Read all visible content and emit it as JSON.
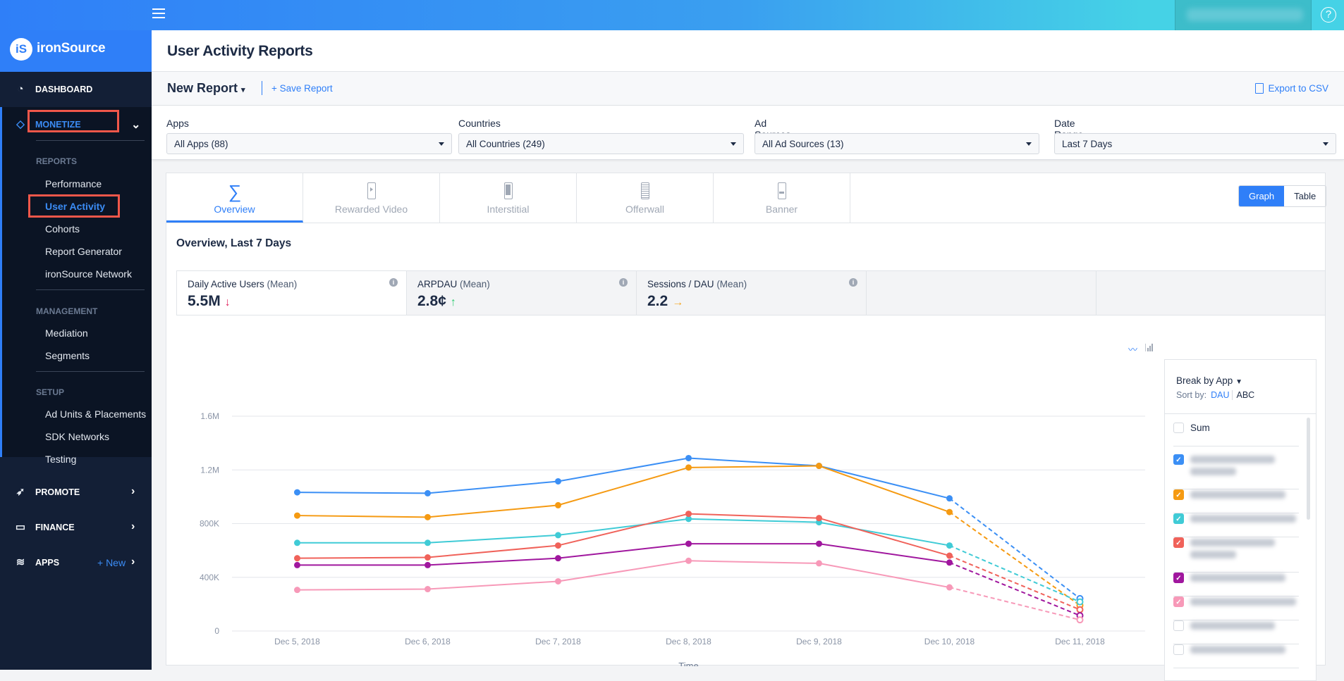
{
  "brand": {
    "logo_mark": "iS",
    "name": "ironSource"
  },
  "topbar": {
    "help_icon": "?"
  },
  "sidebar": {
    "dashboard": "DASHBOARD",
    "monetize": "MONETIZE",
    "sections": [
      {
        "title": "REPORTS",
        "items": [
          "Performance",
          "User Activity",
          "Cohorts",
          "Report Generator",
          "ironSource Network"
        ]
      },
      {
        "title": "MANAGEMENT",
        "items": [
          "Mediation",
          "Segments"
        ]
      },
      {
        "title": "SETUP",
        "items": [
          "Ad Units & Placements",
          "SDK Networks",
          "Testing"
        ]
      }
    ],
    "promote": "PROMOTE",
    "finance": "FINANCE",
    "apps": "APPS",
    "apps_new": "+ New"
  },
  "page": {
    "title": "User Activity Reports",
    "report_name": "New Report",
    "save": "+ Save Report",
    "export": "Export to CSV"
  },
  "filters": [
    {
      "label": "Apps",
      "value": "All Apps (88)"
    },
    {
      "label": "Countries",
      "value": "All Countries (249)"
    },
    {
      "label": "Ad Sources",
      "value": "All Ad Sources (13)"
    },
    {
      "label": "Date Range",
      "value": "Last 7 Days"
    }
  ],
  "tabs": [
    {
      "label": "Overview",
      "icon": "sigma"
    },
    {
      "label": "Rewarded Video"
    },
    {
      "label": "Interstitial"
    },
    {
      "label": "Offerwall"
    },
    {
      "label": "Banner"
    }
  ],
  "view_toggle": {
    "graph": "Graph",
    "table": "Table",
    "active": "Graph"
  },
  "overview_title": "Overview, Last 7 Days",
  "metrics": [
    {
      "name": "Daily Active Users",
      "agg": "(Mean)",
      "value": "5.5M",
      "trend": "↓",
      "color": "#e0245e"
    },
    {
      "name": "ARPDAU",
      "agg": "(Mean)",
      "value": "2.8¢",
      "trend": "↑",
      "color": "#2ecc71"
    },
    {
      "name": "Sessions / DAU",
      "agg": "(Mean)",
      "value": "2.2",
      "trend": "→",
      "color": "#f5a623"
    }
  ],
  "legend": {
    "break_by": "Break by App",
    "sort_label": "Sort by:",
    "sort_dau": "DAU",
    "sort_abc": "ABC",
    "sum": "Sum"
  },
  "chart_data": {
    "type": "line",
    "xlabel": "Time",
    "ylabel": "",
    "categories": [
      "Dec 5, 2018",
      "Dec 6, 2018",
      "Dec 7, 2018",
      "Dec 8, 2018",
      "Dec 9, 2018",
      "Dec 10, 2018",
      "Dec 11, 2018"
    ],
    "yticks": [
      0,
      400000,
      800000,
      1200000,
      1600000
    ],
    "ytick_labels": [
      "0",
      "400K",
      "800K",
      "1.2M",
      "1.6M"
    ],
    "ylim": [
      0,
      1600000
    ],
    "grid": true,
    "dashed_last_segment": true,
    "series": [
      {
        "color": "#3b8ff5",
        "values": [
          1033000,
          1026000,
          1115000,
          1288000,
          1230000,
          988000,
          242000
        ]
      },
      {
        "color": "#f59a12",
        "values": [
          860000,
          848000,
          937000,
          1218000,
          1230000,
          886000,
          191000
        ]
      },
      {
        "color": "#40cbd6",
        "values": [
          657000,
          657000,
          714000,
          835000,
          810000,
          637000,
          217000
        ]
      },
      {
        "color": "#f0625a",
        "values": [
          542000,
          548000,
          637000,
          873000,
          841000,
          561000,
          159000
        ]
      },
      {
        "color": "#a0179e",
        "values": [
          491000,
          491000,
          542000,
          650000,
          650000,
          510000,
          115000
        ]
      },
      {
        "color": "#f799b8",
        "values": [
          306000,
          312000,
          370000,
          523000,
          504000,
          325000,
          83000
        ]
      }
    ]
  }
}
